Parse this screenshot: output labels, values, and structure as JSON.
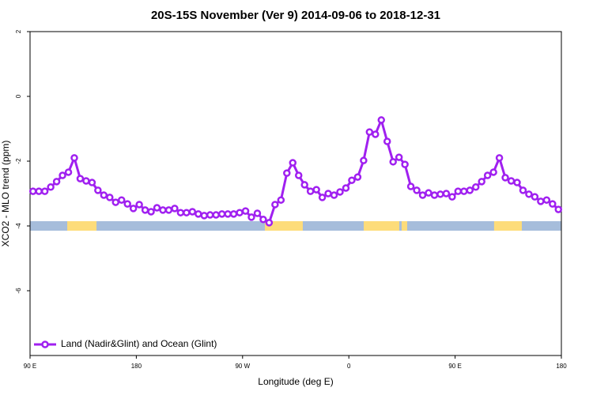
{
  "chart_data": {
    "type": "line",
    "title": "20S-15S November (Ver 9)   2014-09-06 to 2018-12-31",
    "xlabel": "Longitude (deg E)",
    "ylabel": "XCO2 - MLO trend (ppm)",
    "x": [
      92.5,
      97.5,
      102.5,
      107.5,
      112.5,
      117.5,
      122.5,
      127.5,
      132.5,
      137.5,
      142.5,
      147.5,
      152.5,
      157.5,
      162.5,
      167.5,
      172.5,
      177.5,
      182.5,
      187.5,
      192.5,
      197.5,
      202.5,
      207.5,
      212.5,
      217.5,
      222.5,
      227.5,
      232.5,
      237.5,
      242.5,
      247.5,
      252.5,
      257.5,
      262.5,
      267.5,
      272.5,
      277.5,
      282.5,
      287.5,
      292.5,
      297.5,
      302.5,
      307.5,
      312.5,
      317.5,
      322.5,
      327.5,
      332.5,
      337.5,
      342.5,
      347.5,
      352.5,
      357.5,
      362.5,
      367.5,
      372.5,
      377.5,
      382.5,
      387.5,
      392.5,
      397.5,
      402.5,
      407.5,
      412.5,
      417.5,
      422.5,
      427.5,
      432.5,
      437.5,
      442.5,
      447.5,
      452.5,
      457.5,
      462.5,
      467.5,
      472.5,
      477.5,
      482.5,
      487.5,
      492.5,
      497.5,
      502.5,
      507.5,
      512.5,
      517.5,
      522.5,
      527.5,
      532.5,
      537.5
    ],
    "series": [
      {
        "name": "Land (Nadir&Glint) and Ocean (Glint)",
        "color": "#a020f0",
        "values": [
          -2.93,
          -2.93,
          -2.93,
          -2.8,
          -2.63,
          -2.44,
          -2.34,
          -1.9,
          -2.54,
          -2.61,
          -2.66,
          -2.9,
          -3.05,
          -3.12,
          -3.27,
          -3.2,
          -3.32,
          -3.46,
          -3.34,
          -3.51,
          -3.56,
          -3.44,
          -3.51,
          -3.51,
          -3.46,
          -3.59,
          -3.59,
          -3.56,
          -3.63,
          -3.68,
          -3.66,
          -3.66,
          -3.63,
          -3.63,
          -3.63,
          -3.59,
          -3.54,
          -3.73,
          -3.61,
          -3.8,
          -3.9,
          -3.34,
          -3.2,
          -2.37,
          -2.05,
          -2.44,
          -2.73,
          -2.93,
          -2.88,
          -3.12,
          -3.0,
          -3.05,
          -2.95,
          -2.83,
          -2.59,
          -2.49,
          -1.98,
          -1.1,
          -1.17,
          -0.73,
          -1.39,
          -2.02,
          -1.88,
          -2.1,
          -2.78,
          -2.9,
          -3.05,
          -2.98,
          -3.05,
          -3.02,
          -3.0,
          -3.1,
          -2.93,
          -2.93,
          -2.9,
          -2.8,
          -2.63,
          -2.44,
          -2.34,
          -1.9,
          -2.51,
          -2.61,
          -2.66,
          -2.9,
          -3.02,
          -3.1,
          -3.24,
          -3.2,
          -3.32,
          -3.49
        ]
      }
    ],
    "strip": {
      "y": -4,
      "color": "#a6bddb",
      "land_color": "#fddc7a",
      "land": [
        [
          121.5,
          146.3
        ],
        [
          288.9,
          321
        ],
        [
          372.6,
          402.7
        ],
        [
          404.7,
          409.4
        ],
        [
          483,
          506.5
        ]
      ]
    },
    "xlim": [
      90,
      540
    ],
    "ylim": [
      -8,
      2
    ],
    "xticks": [
      {
        "value": 90,
        "label": "90 E"
      },
      {
        "value": 180,
        "label": "180"
      },
      {
        "value": 270,
        "label": "90 W"
      },
      {
        "value": 360,
        "label": "0"
      },
      {
        "value": 450,
        "label": "90 E"
      },
      {
        "value": 540,
        "label": "180"
      }
    ],
    "yticks": [
      2,
      0,
      -2,
      -4,
      -6
    ],
    "legend": "bottom-left"
  }
}
